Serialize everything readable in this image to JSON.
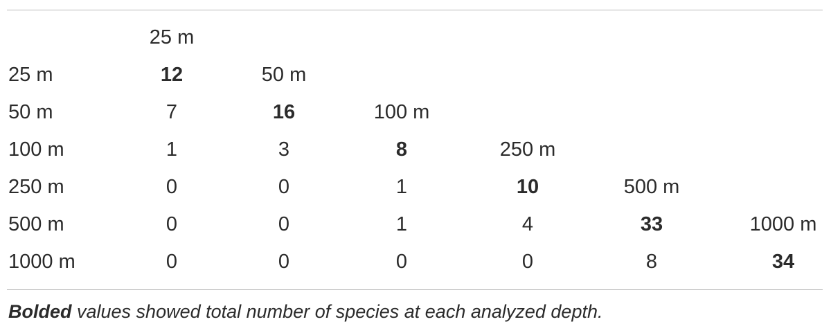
{
  "table": {
    "column_headers": [
      "25 m",
      "50 m",
      "100 m",
      "250 m",
      "500 m",
      "1000 m"
    ],
    "row_labels": [
      "25 m",
      "50 m",
      "100 m",
      "250 m",
      "500 m",
      "1000 m"
    ],
    "rows": [
      {
        "cells": [
          "12"
        ],
        "bold_index": 0
      },
      {
        "cells": [
          "7",
          "16"
        ],
        "bold_index": 1
      },
      {
        "cells": [
          "1",
          "3",
          "8"
        ],
        "bold_index": 2
      },
      {
        "cells": [
          "0",
          "0",
          "1",
          "10"
        ],
        "bold_index": 3
      },
      {
        "cells": [
          "0",
          "0",
          "1",
          "4",
          "33"
        ],
        "bold_index": 4
      },
      {
        "cells": [
          "0",
          "0",
          "0",
          "0",
          "8",
          "34"
        ],
        "bold_index": 5
      }
    ]
  },
  "caption": {
    "bold_word": "Bolded",
    "rest": " values showed total number of species at each analyzed depth."
  },
  "colors": {
    "text": "#2b2b2b",
    "rule": "#b9b9b9"
  }
}
